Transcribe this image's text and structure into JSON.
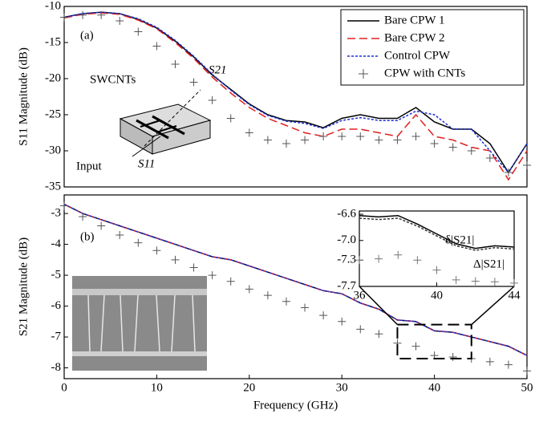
{
  "chart_data": [
    {
      "type": "line",
      "annotations": [
        "(a)",
        "SWCNTs",
        "S21",
        "Input",
        "S11"
      ],
      "y_label": "S11 Magnitude (dB)",
      "x": [
        0,
        2,
        4,
        6,
        8,
        10,
        12,
        14,
        16,
        18,
        20,
        22,
        24,
        26,
        28,
        30,
        32,
        34,
        36,
        38,
        40,
        42,
        44,
        46,
        48,
        50
      ],
      "xlim": [
        0,
        50
      ],
      "ylim": [
        -35,
        -10
      ],
      "yticks": [
        -10,
        -15,
        -20,
        -25,
        -30,
        -35
      ],
      "legend": "upper right",
      "series": [
        {
          "name": "Bare CPW 1",
          "color": "#000000",
          "linestyle": "solid",
          "values": [
            -11.5,
            -11,
            -10.8,
            -11,
            -11.8,
            -13,
            -14.8,
            -17,
            -19.5,
            -21.5,
            -23.5,
            -25,
            -25.8,
            -26,
            -26.8,
            -25.5,
            -25,
            -25.5,
            -25.5,
            -24,
            -26,
            -27,
            -27,
            -29,
            -33,
            -29
          ]
        },
        {
          "name": "Bare CPW 2",
          "color": "#e02020",
          "linestyle": "dashed",
          "values": [
            -11.6,
            -11.1,
            -10.9,
            -11.1,
            -11.9,
            -13.1,
            -15,
            -17.2,
            -19.8,
            -22,
            -24,
            -25.5,
            -26.5,
            -27.5,
            -28,
            -27,
            -27,
            -27.5,
            -28,
            -25,
            -28,
            -28.5,
            -29.5,
            -30,
            -34,
            -30
          ]
        },
        {
          "name": "Control CPW",
          "color": "#2030d0",
          "linestyle": "dotted",
          "values": [
            -11.5,
            -11,
            -10.8,
            -11,
            -11.7,
            -12.9,
            -14.7,
            -16.9,
            -19.4,
            -21.6,
            -23.6,
            -25.1,
            -25.9,
            -26.2,
            -26.9,
            -25.8,
            -25.4,
            -25.8,
            -25.8,
            -24.5,
            -25,
            -27,
            -27,
            -30,
            -33,
            -29
          ]
        },
        {
          "name": "CPW with CNTs",
          "color": "#555555",
          "linestyle": "none",
          "marker": "+",
          "values": [
            -11.5,
            -11.2,
            -11.2,
            -12,
            -13.5,
            -15.5,
            -18,
            -20.5,
            -23,
            -25.5,
            -27.5,
            -28.5,
            -29,
            -28.5,
            -28,
            -28,
            -28,
            -28.5,
            -28.5,
            -28,
            -29,
            -29.5,
            -30,
            -31,
            -33,
            -32
          ]
        }
      ]
    },
    {
      "type": "line",
      "annotations": [
        "(b)"
      ],
      "y_label": "S21 Magnitude (dB)",
      "x_label": "Frequency (GHz)",
      "x": [
        0,
        2,
        4,
        6,
        8,
        10,
        12,
        14,
        16,
        18,
        20,
        22,
        24,
        26,
        28,
        30,
        32,
        34,
        36,
        38,
        40,
        42,
        44,
        46,
        48,
        50
      ],
      "xlim": [
        0,
        50
      ],
      "xticks": [
        0,
        10,
        20,
        30,
        40,
        50
      ],
      "ylim": [
        -8.35,
        -2.4
      ],
      "yticks": [
        -3,
        -4,
        -5,
        -6,
        -7,
        -8
      ],
      "series": [
        {
          "name": "Bare CPW 1",
          "color": "#000000",
          "linestyle": "solid",
          "values": [
            -2.7,
            -3,
            -3.2,
            -3.4,
            -3.6,
            -3.8,
            -4,
            -4.2,
            -4.4,
            -4.5,
            -4.7,
            -4.9,
            -5.1,
            -5.3,
            -5.5,
            -5.6,
            -5.9,
            -6.1,
            -6.45,
            -6.5,
            -6.8,
            -6.85,
            -7,
            -7.15,
            -7.3,
            -7.6
          ]
        },
        {
          "name": "Bare CPW 2",
          "color": "#e02020",
          "linestyle": "dashed",
          "values": [
            -2.7,
            -3,
            -3.2,
            -3.4,
            -3.6,
            -3.8,
            -4,
            -4.2,
            -4.4,
            -4.5,
            -4.7,
            -4.9,
            -5.1,
            -5.3,
            -5.5,
            -5.6,
            -5.9,
            -6.1,
            -6.45,
            -6.5,
            -6.8,
            -6.85,
            -7,
            -7.15,
            -7.3,
            -7.6
          ]
        },
        {
          "name": "Control CPW",
          "color": "#2030d0",
          "linestyle": "dotted",
          "values": [
            -2.7,
            -3,
            -3.2,
            -3.4,
            -3.6,
            -3.8,
            -4,
            -4.2,
            -4.4,
            -4.5,
            -4.7,
            -4.9,
            -5.1,
            -5.3,
            -5.5,
            -5.6,
            -5.9,
            -6.1,
            -6.45,
            -6.5,
            -6.8,
            -6.85,
            -7,
            -7.15,
            -7.3,
            -7.6
          ]
        },
        {
          "name": "CPW with CNTs",
          "color": "#555555",
          "linestyle": "none",
          "marker": "+",
          "values": [
            -2.75,
            -3.1,
            -3.4,
            -3.7,
            -3.95,
            -4.2,
            -4.5,
            -4.75,
            -5,
            -5.2,
            -5.45,
            -5.65,
            -5.85,
            -6.05,
            -6.3,
            -6.5,
            -6.75,
            -6.9,
            -7.2,
            -7.3,
            -7.6,
            -7.65,
            -7.7,
            -7.8,
            -7.9,
            -8.1
          ]
        }
      ]
    },
    {
      "type": "line",
      "annotations": [
        "δ|S21|",
        "Δ|S21|"
      ],
      "x": [
        36,
        37,
        38,
        39,
        40,
        41,
        42,
        43,
        44
      ],
      "xlim": [
        36,
        44
      ],
      "xticks": [
        36,
        40,
        44
      ],
      "ylim": [
        -7.7,
        -6.55
      ],
      "yticks": [
        -6.6,
        {
          "value": -7.0,
          "label": "-7.0"
        },
        -7.3,
        -7.7
      ],
      "series": [
        {
          "name": "Bare CPW 1",
          "color": "#000000",
          "linestyle": "solid",
          "values": [
            -6.62,
            -6.64,
            -6.62,
            -6.75,
            -6.9,
            -7.05,
            -7.12,
            -7.08,
            -7.1
          ]
        },
        {
          "name": "Control CPW",
          "color": "#333333",
          "linestyle": "dotted",
          "values": [
            -6.66,
            -6.68,
            -6.66,
            -6.78,
            -6.93,
            -7.08,
            -7.15,
            -7.11,
            -7.13
          ]
        },
        {
          "name": "CPW with CNTs",
          "color": "#777777",
          "linestyle": "none",
          "marker": "+",
          "values": [
            -7.3,
            -7.28,
            -7.22,
            -7.3,
            -7.45,
            -7.6,
            -7.62,
            -7.63,
            -7.65
          ]
        }
      ]
    }
  ]
}
